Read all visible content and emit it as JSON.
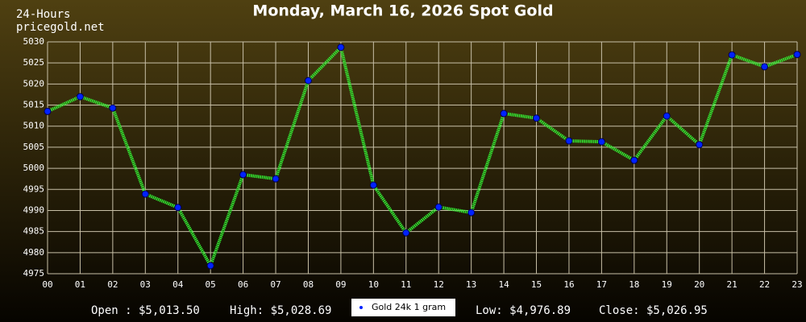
{
  "chart_data": {
    "type": "line",
    "title": "Monday, March 16, 2026 Spot Gold",
    "corner_texts": [
      "24-Hours",
      "pricegold.net"
    ],
    "categories": [
      "00",
      "01",
      "02",
      "03",
      "04",
      "05",
      "06",
      "07",
      "08",
      "09",
      "10",
      "11",
      "12",
      "13",
      "14",
      "15",
      "16",
      "17",
      "18",
      "19",
      "20",
      "21",
      "22",
      "23"
    ],
    "series": [
      {
        "name": "Gold 24k 1 gram",
        "color": "#33ee33",
        "marker_color": "#0022ff",
        "values": [
          5013.5,
          5017.0,
          5014.3,
          4993.9,
          4990.7,
          4976.9,
          4998.5,
          4997.5,
          5020.8,
          5028.7,
          4996.0,
          4984.7,
          4990.8,
          4989.5,
          5013.0,
          5011.9,
          5006.5,
          5006.3,
          5001.9,
          5012.4,
          5005.6,
          5026.9,
          5024.1,
          5027.0
        ]
      }
    ],
    "ylim": [
      4975,
      5030
    ],
    "yticks": [
      4975,
      4980,
      4985,
      4990,
      4995,
      5000,
      5005,
      5010,
      5015,
      5020,
      5025,
      5030
    ],
    "grid": true,
    "footer": {
      "open": "Open : $5,013.50",
      "high": "High: $5,028.69",
      "low": "Low: $4,976.89",
      "close": "Close: $5,026.95"
    }
  }
}
